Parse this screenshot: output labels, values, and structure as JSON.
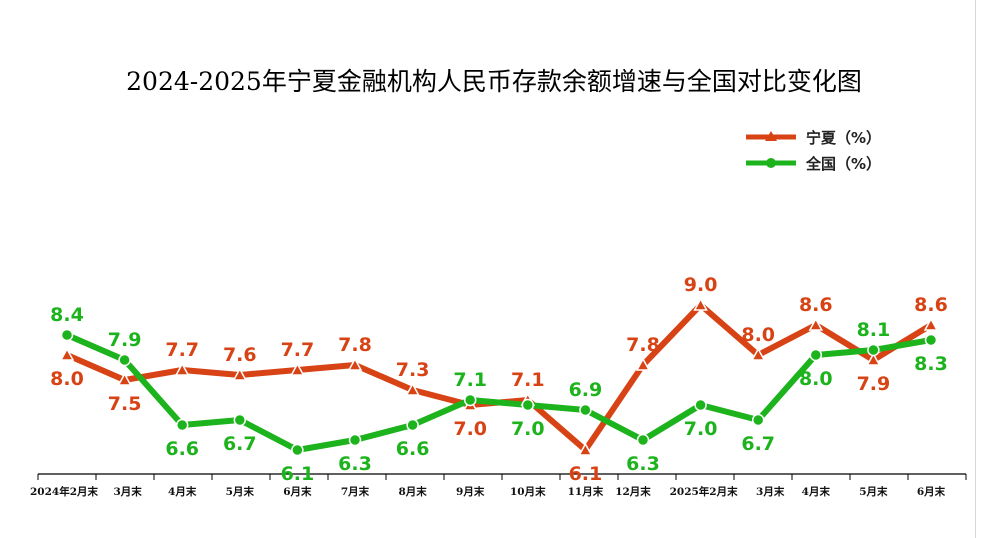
{
  "chart_data": {
    "type": "line",
    "title": "2024-2025年宁夏金融机构人民币存款余额增速与全国对比变化图",
    "categories": [
      "2024年2月末",
      "3月末",
      "4月末",
      "5月末",
      "6月末",
      "7月末",
      "8月末",
      "9月末",
      "10月末",
      "11月末",
      "12月末",
      "2025年2月末",
      "3月末",
      "4月末",
      "5月末",
      "6月末"
    ],
    "series": [
      {
        "name": "宁夏（%）",
        "color": "#d84315",
        "marker": "triangle",
        "values": [
          8.0,
          7.5,
          7.7,
          7.6,
          7.7,
          7.8,
          7.3,
          7.0,
          7.1,
          6.1,
          7.8,
          9.0,
          8.0,
          8.6,
          7.9,
          8.6
        ]
      },
      {
        "name": "全国（%）",
        "color": "#1db31d",
        "marker": "circle",
        "values": [
          8.4,
          7.9,
          6.6,
          6.7,
          6.1,
          6.3,
          6.6,
          7.1,
          7.0,
          6.9,
          6.3,
          7.0,
          6.7,
          8.0,
          8.1,
          8.3
        ]
      }
    ],
    "legend_position": "top-right",
    "grid": false,
    "ylim": [
      4.0,
      10.5
    ]
  }
}
